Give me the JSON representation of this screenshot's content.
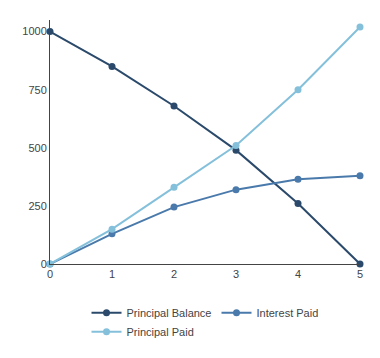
{
  "chart_data": {
    "type": "line",
    "x": [
      0,
      1,
      2,
      3,
      4,
      5
    ],
    "series": [
      {
        "name": "Principal Balance",
        "color": "#2b4a6b",
        "values": [
          1000,
          850,
          680,
          490,
          260,
          0
        ]
      },
      {
        "name": "Interest Paid",
        "color": "#4a7aab",
        "values": [
          0,
          130,
          245,
          320,
          365,
          380
        ]
      },
      {
        "name": "Principal Paid",
        "color": "#85c0db",
        "values": [
          0,
          150,
          330,
          510,
          750,
          1020
        ]
      }
    ],
    "xlim": [
      0,
      5
    ],
    "ylim": [
      0,
      1050
    ],
    "xticks": [
      0,
      1,
      2,
      3,
      4,
      5
    ],
    "yticks": [
      0,
      250,
      500,
      750,
      1000
    ],
    "grid": false,
    "legend": "bottom",
    "marker": "circle"
  }
}
